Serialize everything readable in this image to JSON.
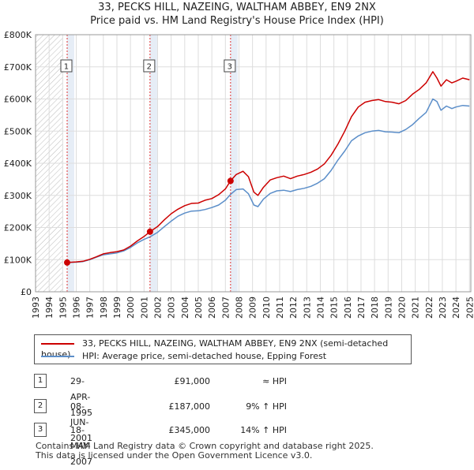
{
  "title_line1": "33, PECKS HILL, NAZEING, WALTHAM ABBEY, EN9 2NX",
  "title_line2": "Price paid vs. HM Land Registry's House Price Index (HPI)",
  "colors": {
    "property": "#cc0000",
    "hpi": "#5b8ec9",
    "grid": "#dddddd",
    "shade": "#dce6f2",
    "marker_line": "#dd3333"
  },
  "legend": {
    "property": "33, PECKS HILL, NAZEING, WALTHAM ABBEY, EN9 2NX (semi-detached house)",
    "hpi": "HPI: Average price, semi-detached house, Epping Forest"
  },
  "transactions": [
    {
      "num": "1",
      "date": "29-APR-1995",
      "price": "£91,000",
      "hpi": "≈ HPI"
    },
    {
      "num": "2",
      "date": "08-JUN-2001",
      "price": "£187,000",
      "hpi": "9% ↑ HPI"
    },
    {
      "num": "3",
      "date": "18-MAY-2007",
      "price": "£345,000",
      "hpi": "14% ↑ HPI"
    }
  ],
  "footer": {
    "line1": "Contains HM Land Registry data © Crown copyright and database right 2025.",
    "line2": "This data is licensed under the Open Government Licence v3.0."
  },
  "chart_data": {
    "type": "line",
    "xlim": [
      1993,
      2025.1
    ],
    "ylim": [
      0,
      800000
    ],
    "x_ticks": [
      1993,
      1994,
      1995,
      1996,
      1997,
      1998,
      1999,
      2000,
      2001,
      2002,
      2003,
      2004,
      2005,
      2006,
      2007,
      2008,
      2009,
      2010,
      2011,
      2012,
      2013,
      2014,
      2015,
      2016,
      2017,
      2018,
      2019,
      2020,
      2021,
      2022,
      2023,
      2024,
      2025
    ],
    "y_ticks": [
      {
        "value": 0,
        "label": "£0"
      },
      {
        "value": 100000,
        "label": "£100K"
      },
      {
        "value": 200000,
        "label": "£200K"
      },
      {
        "value": 300000,
        "label": "£300K"
      },
      {
        "value": 400000,
        "label": "£400K"
      },
      {
        "value": 500000,
        "label": "£500K"
      },
      {
        "value": 600000,
        "label": "£600K"
      },
      {
        "value": 700000,
        "label": "£700K"
      },
      {
        "value": 800000,
        "label": "£800K"
      }
    ],
    "hatched_before": 1995.0,
    "sales": [
      {
        "label": "1",
        "x": 1995.33,
        "y": 91000
      },
      {
        "label": "2",
        "x": 2001.44,
        "y": 187000
      },
      {
        "label": "3",
        "x": 2007.38,
        "y": 345000
      }
    ],
    "series": [
      {
        "name": "33, PECKS HILL, NAZEING, WALTHAM ABBEY, EN9 2NX (semi-detached house)",
        "points": [
          [
            1995.33,
            91000
          ],
          [
            1996,
            93000
          ],
          [
            1996.5,
            95000
          ],
          [
            1997,
            101000
          ],
          [
            1997.5,
            109000
          ],
          [
            1998,
            118000
          ],
          [
            1998.5,
            122000
          ],
          [
            1999,
            125000
          ],
          [
            1999.5,
            130000
          ],
          [
            2000,
            142000
          ],
          [
            2000.5,
            158000
          ],
          [
            2001,
            172000
          ],
          [
            2001.44,
            187000
          ],
          [
            2002,
            203000
          ],
          [
            2002.5,
            224000
          ],
          [
            2003,
            243000
          ],
          [
            2003.5,
            257000
          ],
          [
            2004,
            268000
          ],
          [
            2004.5,
            275000
          ],
          [
            2005,
            276000
          ],
          [
            2005.5,
            285000
          ],
          [
            2006,
            290000
          ],
          [
            2006.5,
            302000
          ],
          [
            2007,
            320000
          ],
          [
            2007.38,
            345000
          ],
          [
            2007.8,
            365000
          ],
          [
            2008.3,
            375000
          ],
          [
            2008.7,
            358000
          ],
          [
            2009.1,
            310000
          ],
          [
            2009.4,
            300000
          ],
          [
            2009.8,
            325000
          ],
          [
            2010.3,
            348000
          ],
          [
            2010.8,
            355000
          ],
          [
            2011.3,
            360000
          ],
          [
            2011.8,
            352000
          ],
          [
            2012.3,
            360000
          ],
          [
            2012.8,
            365000
          ],
          [
            2013.3,
            372000
          ],
          [
            2013.8,
            382000
          ],
          [
            2014.3,
            398000
          ],
          [
            2014.8,
            425000
          ],
          [
            2015.3,
            460000
          ],
          [
            2015.8,
            500000
          ],
          [
            2016.3,
            545000
          ],
          [
            2016.8,
            575000
          ],
          [
            2017.3,
            590000
          ],
          [
            2017.8,
            595000
          ],
          [
            2018.3,
            598000
          ],
          [
            2018.8,
            592000
          ],
          [
            2019.3,
            590000
          ],
          [
            2019.8,
            585000
          ],
          [
            2020.3,
            595000
          ],
          [
            2020.8,
            615000
          ],
          [
            2021.3,
            630000
          ],
          [
            2021.8,
            650000
          ],
          [
            2022.3,
            685000
          ],
          [
            2022.6,
            665000
          ],
          [
            2022.9,
            640000
          ],
          [
            2023.3,
            660000
          ],
          [
            2023.7,
            650000
          ],
          [
            2024,
            655000
          ],
          [
            2024.5,
            665000
          ],
          [
            2025,
            660000
          ]
        ]
      },
      {
        "name": "HPI: Average price, semi-detached house, Epping Forest",
        "points": [
          [
            1995.33,
            91000
          ],
          [
            1996,
            92000
          ],
          [
            1996.5,
            94000
          ],
          [
            1997,
            100000
          ],
          [
            1997.5,
            108000
          ],
          [
            1998,
            115000
          ],
          [
            1998.5,
            118000
          ],
          [
            1999,
            121000
          ],
          [
            1999.5,
            127000
          ],
          [
            2000,
            138000
          ],
          [
            2000.5,
            152000
          ],
          [
            2001,
            163000
          ],
          [
            2001.44,
            171000
          ],
          [
            2002,
            185000
          ],
          [
            2002.5,
            203000
          ],
          [
            2003,
            220000
          ],
          [
            2003.5,
            235000
          ],
          [
            2004,
            245000
          ],
          [
            2004.5,
            251000
          ],
          [
            2005,
            252000
          ],
          [
            2005.5,
            256000
          ],
          [
            2006,
            262000
          ],
          [
            2006.5,
            270000
          ],
          [
            2007,
            285000
          ],
          [
            2007.38,
            303000
          ],
          [
            2007.8,
            318000
          ],
          [
            2008.3,
            320000
          ],
          [
            2008.7,
            305000
          ],
          [
            2009.1,
            270000
          ],
          [
            2009.4,
            265000
          ],
          [
            2009.8,
            288000
          ],
          [
            2010.3,
            306000
          ],
          [
            2010.8,
            314000
          ],
          [
            2011.3,
            316000
          ],
          [
            2011.8,
            312000
          ],
          [
            2012.3,
            318000
          ],
          [
            2012.8,
            322000
          ],
          [
            2013.3,
            328000
          ],
          [
            2013.8,
            338000
          ],
          [
            2014.3,
            352000
          ],
          [
            2014.8,
            378000
          ],
          [
            2015.3,
            410000
          ],
          [
            2015.8,
            438000
          ],
          [
            2016.3,
            470000
          ],
          [
            2016.8,
            485000
          ],
          [
            2017.3,
            495000
          ],
          [
            2017.8,
            500000
          ],
          [
            2018.3,
            502000
          ],
          [
            2018.8,
            498000
          ],
          [
            2019.3,
            497000
          ],
          [
            2019.8,
            495000
          ],
          [
            2020.3,
            505000
          ],
          [
            2020.8,
            520000
          ],
          [
            2021.3,
            540000
          ],
          [
            2021.8,
            558000
          ],
          [
            2022.3,
            600000
          ],
          [
            2022.6,
            592000
          ],
          [
            2022.9,
            565000
          ],
          [
            2023.3,
            578000
          ],
          [
            2023.7,
            570000
          ],
          [
            2024,
            575000
          ],
          [
            2024.5,
            580000
          ],
          [
            2025,
            578000
          ]
        ]
      }
    ]
  }
}
